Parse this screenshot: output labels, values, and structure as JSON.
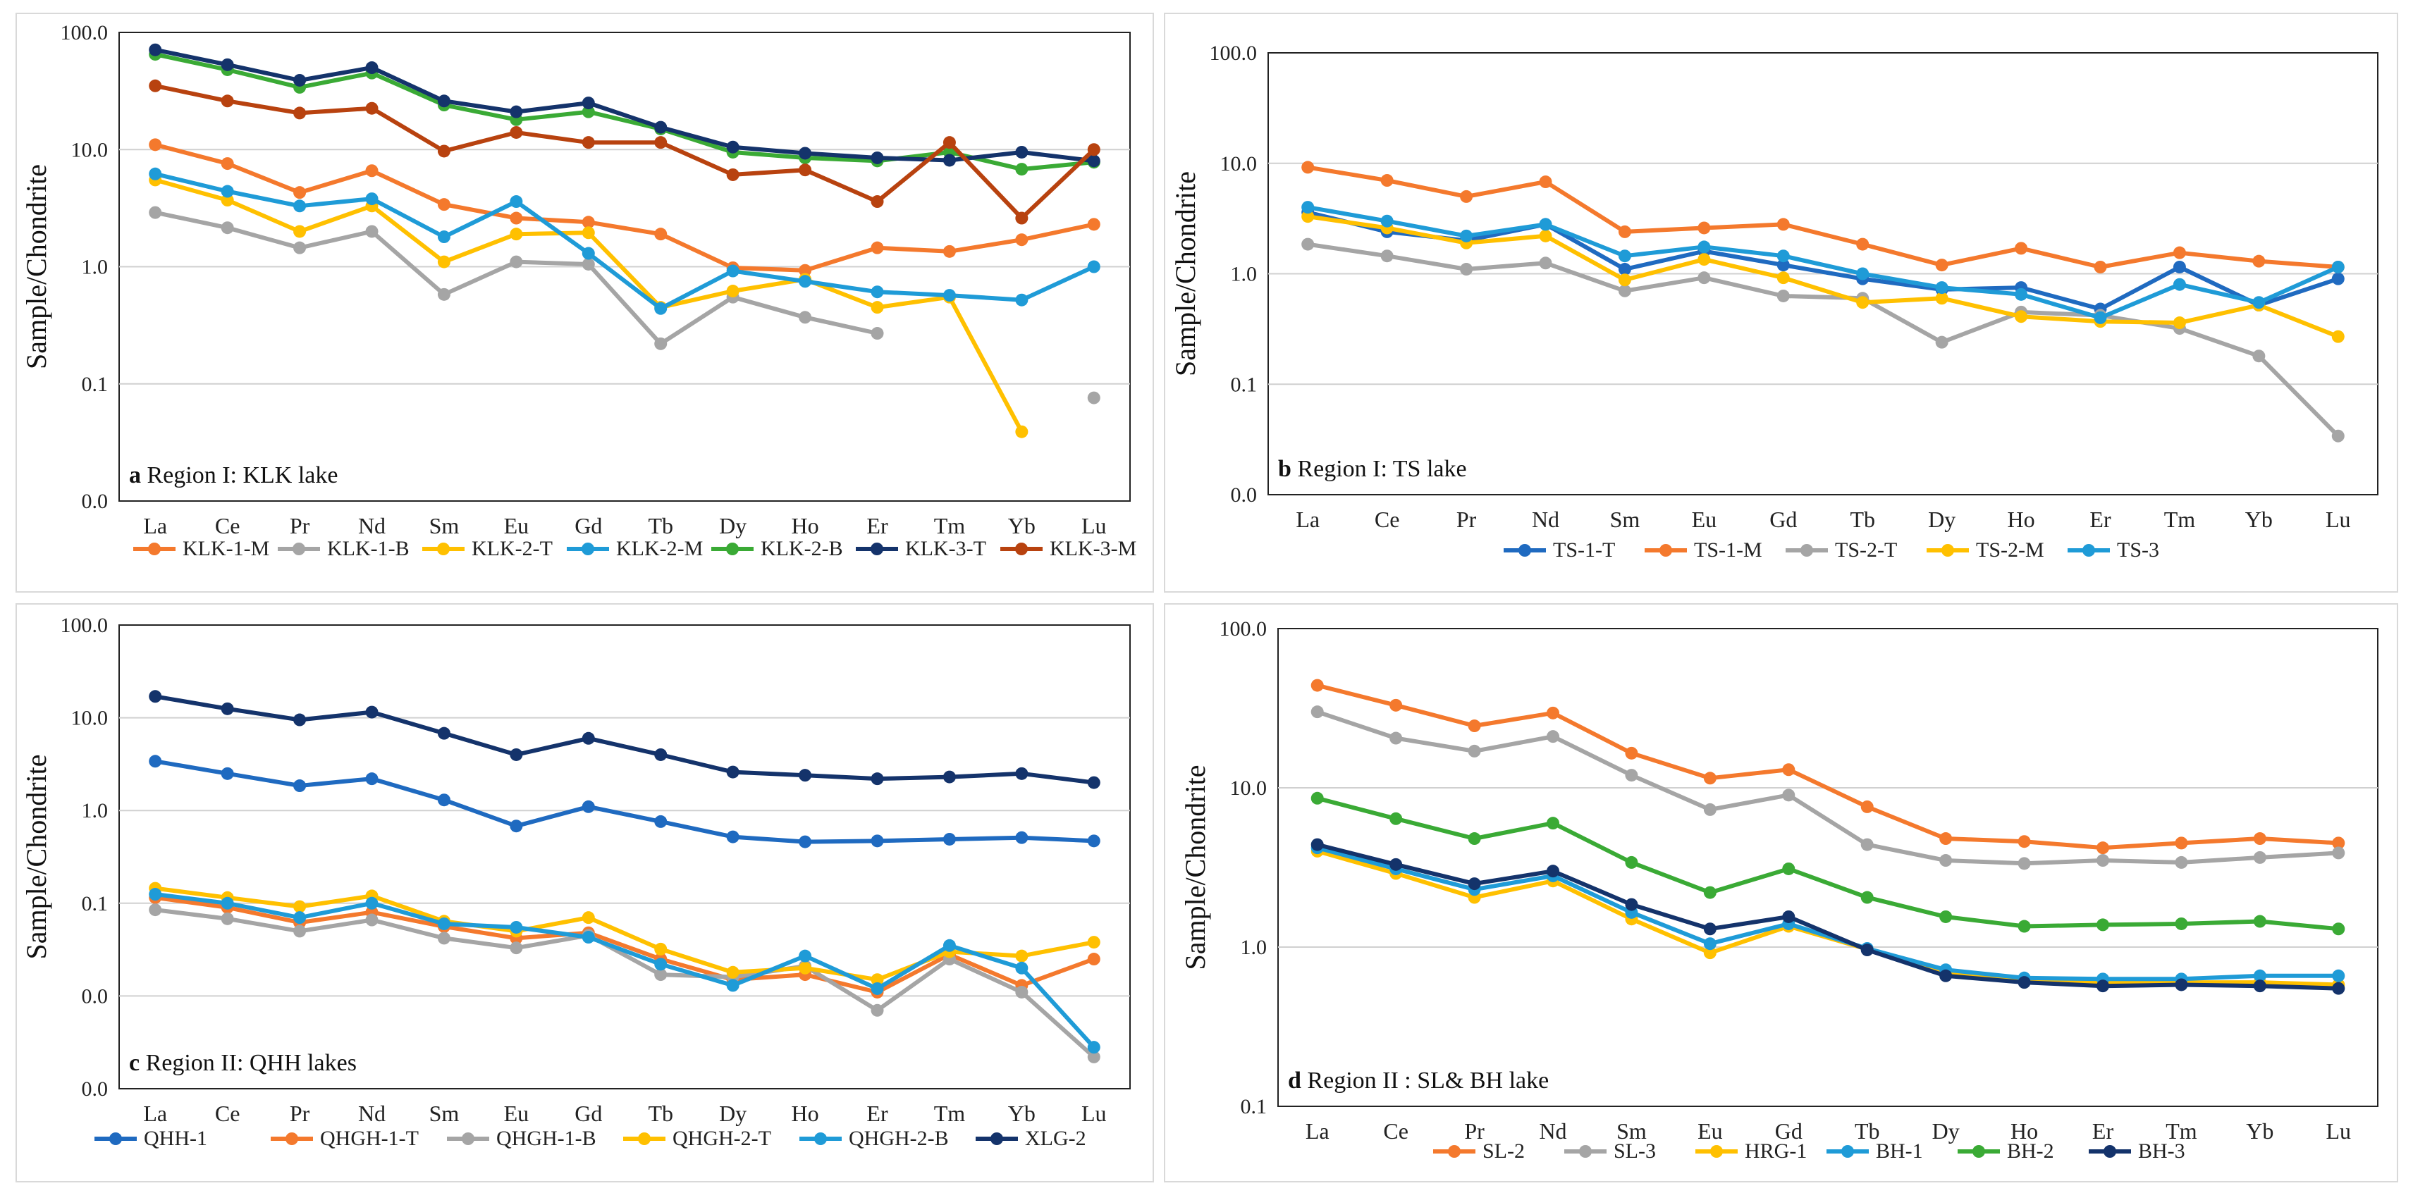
{
  "categories_common": [
    "La",
    "Ce",
    "Pr",
    "Nd",
    "Sm",
    "Eu",
    "Gd",
    "Tb",
    "Dy",
    "Ho",
    "Er",
    "Tm",
    "Yb",
    "Lu"
  ],
  "chart_data": [
    {
      "type": "line",
      "title": "a Region I: KLK lake",
      "ylabel": "Sample/Chondrite",
      "xlabel": "",
      "yscale": "log",
      "ylim": [
        0.01,
        100
      ],
      "yticks": [
        100,
        10,
        1,
        0.1,
        0.01
      ],
      "yticklabels": [
        "100.0",
        "10.0",
        "1.0",
        "0.1",
        "0.0"
      ],
      "categories": [
        "La",
        "Ce",
        "Pr",
        "Nd",
        "Sm",
        "Eu",
        "Gd",
        "Tb",
        "Dy",
        "Ho",
        "Er",
        "Tm",
        "Yb",
        "Lu"
      ],
      "legend": "bottom",
      "series": [
        {
          "name": "KLK-1-M",
          "color": "#f4792d",
          "values": [
            11,
            7.6,
            4.3,
            6.6,
            3.4,
            2.6,
            2.4,
            1.9,
            0.98,
            0.93,
            1.45,
            1.35,
            1.7,
            2.3
          ]
        },
        {
          "name": "KLK-1-B",
          "color": "#a5a5a5",
          "values": [
            2.9,
            2.15,
            1.45,
            2.0,
            0.58,
            1.1,
            1.05,
            0.22,
            0.55,
            0.37,
            0.27,
            null,
            null,
            0.076
          ]
        },
        {
          "name": "KLK-2-T",
          "color": "#ffc000",
          "values": [
            5.5,
            3.7,
            2.0,
            3.3,
            1.1,
            1.9,
            1.95,
            0.45,
            0.62,
            0.78,
            0.45,
            0.55,
            0.039,
            null
          ]
        },
        {
          "name": "KLK-2-M",
          "color": "#1f9bd7",
          "values": [
            6.2,
            4.4,
            3.3,
            3.8,
            1.8,
            3.6,
            1.3,
            0.44,
            0.92,
            0.75,
            0.61,
            0.57,
            0.52,
            1.0
          ]
        },
        {
          "name": "KLK-2-B",
          "color": "#3aaa35",
          "values": [
            65,
            48,
            34,
            45,
            24,
            18,
            21,
            15,
            9.5,
            8.5,
            8.0,
            9.5,
            6.8,
            7.8
          ]
        },
        {
          "name": "KLK-3-T",
          "color": "#14336b",
          "values": [
            71,
            53,
            39,
            50,
            26,
            21,
            25,
            15.5,
            10.5,
            9.3,
            8.5,
            8.1,
            9.5,
            8.0
          ]
        },
        {
          "name": "KLK-3-M",
          "color": "#b8420f",
          "values": [
            35,
            26,
            20.5,
            22.5,
            9.7,
            14,
            11.5,
            11.5,
            6.1,
            6.7,
            3.6,
            11.5,
            2.6,
            10
          ]
        }
      ]
    },
    {
      "type": "line",
      "title": "b Region I: TS lake",
      "ylabel": "Sample/Chondrite",
      "xlabel": "",
      "yscale": "log",
      "ylim": [
        0.01,
        100
      ],
      "yticks": [
        100,
        10,
        1,
        0.1,
        0.01
      ],
      "yticklabels": [
        "100.0",
        "10.0",
        "1.0",
        "0.1",
        "0.0"
      ],
      "categories": [
        "La",
        "Ce",
        "Pr",
        "Nd",
        "Sm",
        "Eu",
        "Gd",
        "Tb",
        "Dy",
        "Ho",
        "Er",
        "Tm",
        "Yb",
        "Lu"
      ],
      "legend": "bottom",
      "series": [
        {
          "name": "TS-1-T",
          "color": "#1f6ac0",
          "values": [
            3.6,
            2.4,
            2.0,
            2.8,
            1.1,
            1.6,
            1.2,
            0.9,
            0.72,
            0.75,
            0.48,
            1.15,
            0.52,
            0.9
          ]
        },
        {
          "name": "TS-1-M",
          "color": "#f4792d",
          "values": [
            9.2,
            7.0,
            5.0,
            6.8,
            2.4,
            2.6,
            2.8,
            1.85,
            1.2,
            1.7,
            1.15,
            1.55,
            1.3,
            1.15
          ]
        },
        {
          "name": "TS-2-T",
          "color": "#a5a5a5",
          "values": [
            1.85,
            1.45,
            1.1,
            1.25,
            0.7,
            0.92,
            0.63,
            0.6,
            0.24,
            0.45,
            0.42,
            0.32,
            0.18,
            0.034
          ]
        },
        {
          "name": "TS-2-M",
          "color": "#ffc000",
          "values": [
            3.3,
            2.6,
            1.9,
            2.2,
            0.88,
            1.35,
            0.92,
            0.55,
            0.6,
            0.41,
            0.37,
            0.36,
            0.52,
            0.27
          ]
        },
        {
          "name": "TS-3",
          "color": "#1f9bd7",
          "values": [
            4.0,
            3.0,
            2.2,
            2.8,
            1.45,
            1.75,
            1.45,
            1.0,
            0.75,
            0.65,
            0.4,
            0.8,
            0.55,
            1.15
          ]
        }
      ]
    },
    {
      "type": "line",
      "title": "c Region II: QHH lakes",
      "ylabel": "Sample/Chondrite",
      "xlabel": "",
      "yscale": "log",
      "ylim": [
        0.001,
        100
      ],
      "yticks": [
        100,
        10,
        1,
        0.1,
        0.01,
        0.001
      ],
      "yticklabels": [
        "100.0",
        "10.0",
        "1.0",
        "0.1",
        "0.0",
        "0.0"
      ],
      "categories": [
        "La",
        "Ce",
        "Pr",
        "Nd",
        "Sm",
        "Eu",
        "Gd",
        "Tb",
        "Dy",
        "Ho",
        "Er",
        "Tm",
        "Yb",
        "Lu"
      ],
      "legend": "bottom",
      "series": [
        {
          "name": "QHH-1",
          "color": "#1f6ac0",
          "values": [
            3.4,
            2.5,
            1.85,
            2.2,
            1.3,
            0.68,
            1.1,
            0.76,
            0.52,
            0.46,
            0.47,
            0.49,
            0.51,
            0.47
          ]
        },
        {
          "name": "QHGH-1-T",
          "color": "#f4792d",
          "values": [
            0.115,
            0.09,
            0.062,
            0.08,
            0.056,
            0.042,
            0.048,
            0.025,
            0.015,
            0.017,
            0.011,
            0.028,
            0.013,
            0.025
          ]
        },
        {
          "name": "QHGH-1-B",
          "color": "#a5a5a5",
          "values": [
            0.085,
            0.068,
            0.05,
            0.066,
            0.042,
            0.033,
            0.045,
            0.017,
            0.016,
            0.021,
            0.007,
            0.025,
            0.011,
            0.0022
          ]
        },
        {
          "name": "QHGH-2-T",
          "color": "#ffc000",
          "values": [
            0.145,
            0.115,
            0.092,
            0.12,
            0.064,
            0.05,
            0.07,
            0.032,
            0.018,
            0.02,
            0.015,
            0.03,
            0.027,
            0.038
          ]
        },
        {
          "name": "QHGH-2-B",
          "color": "#1f9bd7",
          "values": [
            0.125,
            0.1,
            0.07,
            0.1,
            0.06,
            0.055,
            0.043,
            0.022,
            0.013,
            0.027,
            0.012,
            0.035,
            0.02,
            0.0028
          ]
        },
        {
          "name": "XLG-2",
          "color": "#14336b",
          "values": [
            17,
            12.5,
            9.5,
            11.5,
            6.8,
            4.0,
            6.0,
            4.0,
            2.6,
            2.4,
            2.2,
            2.3,
            2.5,
            2.0
          ]
        }
      ]
    },
    {
      "type": "line",
      "title": "d Region II : SL& BH lake",
      "ylabel": "Sample/Chondrite",
      "xlabel": "",
      "yscale": "log",
      "ylim": [
        0.1,
        100
      ],
      "yticks": [
        100,
        10,
        1,
        0.1
      ],
      "yticklabels": [
        "100.0",
        "10.0",
        "1.0",
        "0.1"
      ],
      "categories": [
        "La",
        "Ce",
        "Pr",
        "Nd",
        "Sm",
        "Eu",
        "Gd",
        "Tb",
        "Dy",
        "Ho",
        "Er",
        "Tm",
        "Yb",
        "Lu"
      ],
      "legend": "bottom",
      "series": [
        {
          "name": "SL-2",
          "color": "#f4792d",
          "values": [
            44,
            33,
            24.5,
            29.5,
            16.5,
            11.5,
            13,
            7.6,
            4.8,
            4.6,
            4.2,
            4.5,
            4.8,
            4.5
          ]
        },
        {
          "name": "SL-3",
          "color": "#a5a5a5",
          "values": [
            30,
            20.5,
            17,
            21,
            12,
            7.3,
            9.0,
            4.4,
            3.5,
            3.35,
            3.5,
            3.4,
            3.65,
            3.9
          ]
        },
        {
          "name": "HRG-1",
          "color": "#ffc000",
          "values": [
            4.0,
            2.9,
            2.05,
            2.6,
            1.5,
            0.92,
            1.35,
            0.97,
            0.7,
            0.62,
            0.6,
            0.6,
            0.6,
            0.58
          ]
        },
        {
          "name": "BH-1",
          "color": "#1f9bd7",
          "values": [
            4.2,
            3.1,
            2.3,
            2.8,
            1.65,
            1.05,
            1.4,
            0.98,
            0.72,
            0.64,
            0.63,
            0.63,
            0.66,
            0.66
          ]
        },
        {
          "name": "BH-2",
          "color": "#3aaa35",
          "values": [
            8.6,
            6.4,
            4.8,
            6.0,
            3.4,
            2.2,
            3.1,
            2.05,
            1.55,
            1.35,
            1.38,
            1.4,
            1.45,
            1.3
          ]
        },
        {
          "name": "BH-3",
          "color": "#14336b",
          "values": [
            4.4,
            3.3,
            2.5,
            3.0,
            1.85,
            1.3,
            1.55,
            0.96,
            0.66,
            0.6,
            0.57,
            0.58,
            0.57,
            0.55
          ]
        }
      ]
    }
  ]
}
